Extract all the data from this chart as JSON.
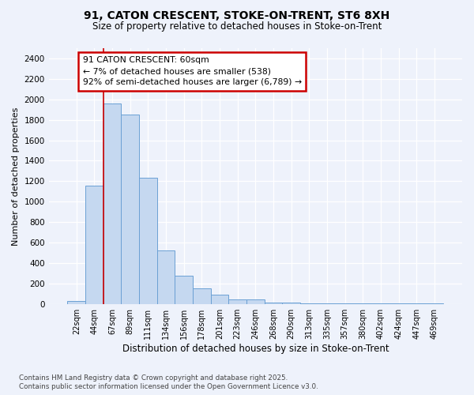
{
  "title_line1": "91, CATON CRESCENT, STOKE-ON-TRENT, ST6 8XH",
  "title_line2": "Size of property relative to detached houses in Stoke-on-Trent",
  "xlabel": "Distribution of detached houses by size in Stoke-on-Trent",
  "ylabel": "Number of detached properties",
  "categories": [
    "22sqm",
    "44sqm",
    "67sqm",
    "89sqm",
    "111sqm",
    "134sqm",
    "156sqm",
    "178sqm",
    "201sqm",
    "223sqm",
    "246sqm",
    "268sqm",
    "290sqm",
    "313sqm",
    "335sqm",
    "357sqm",
    "380sqm",
    "402sqm",
    "424sqm",
    "447sqm",
    "469sqm"
  ],
  "values": [
    25,
    1155,
    1960,
    1855,
    1230,
    520,
    275,
    150,
    90,
    42,
    42,
    15,
    12,
    5,
    3,
    2,
    2,
    2,
    2,
    2,
    2
  ],
  "bar_color": "#c5d8f0",
  "bar_edge_color": "#6ba0d4",
  "red_line_x": 1.5,
  "annotation_text": "91 CATON CRESCENT: 60sqm\n← 7% of detached houses are smaller (538)\n92% of semi-detached houses are larger (6,789) →",
  "annotation_box_facecolor": "#ffffff",
  "annotation_box_edgecolor": "#cc0000",
  "red_line_color": "#cc0000",
  "background_color": "#eef2fb",
  "grid_color": "#ffffff",
  "ylim": [
    0,
    2500
  ],
  "yticks": [
    0,
    200,
    400,
    600,
    800,
    1000,
    1200,
    1400,
    1600,
    1800,
    2000,
    2200,
    2400
  ],
  "footer_line1": "Contains HM Land Registry data © Crown copyright and database right 2025.",
  "footer_line2": "Contains public sector information licensed under the Open Government Licence v3.0."
}
